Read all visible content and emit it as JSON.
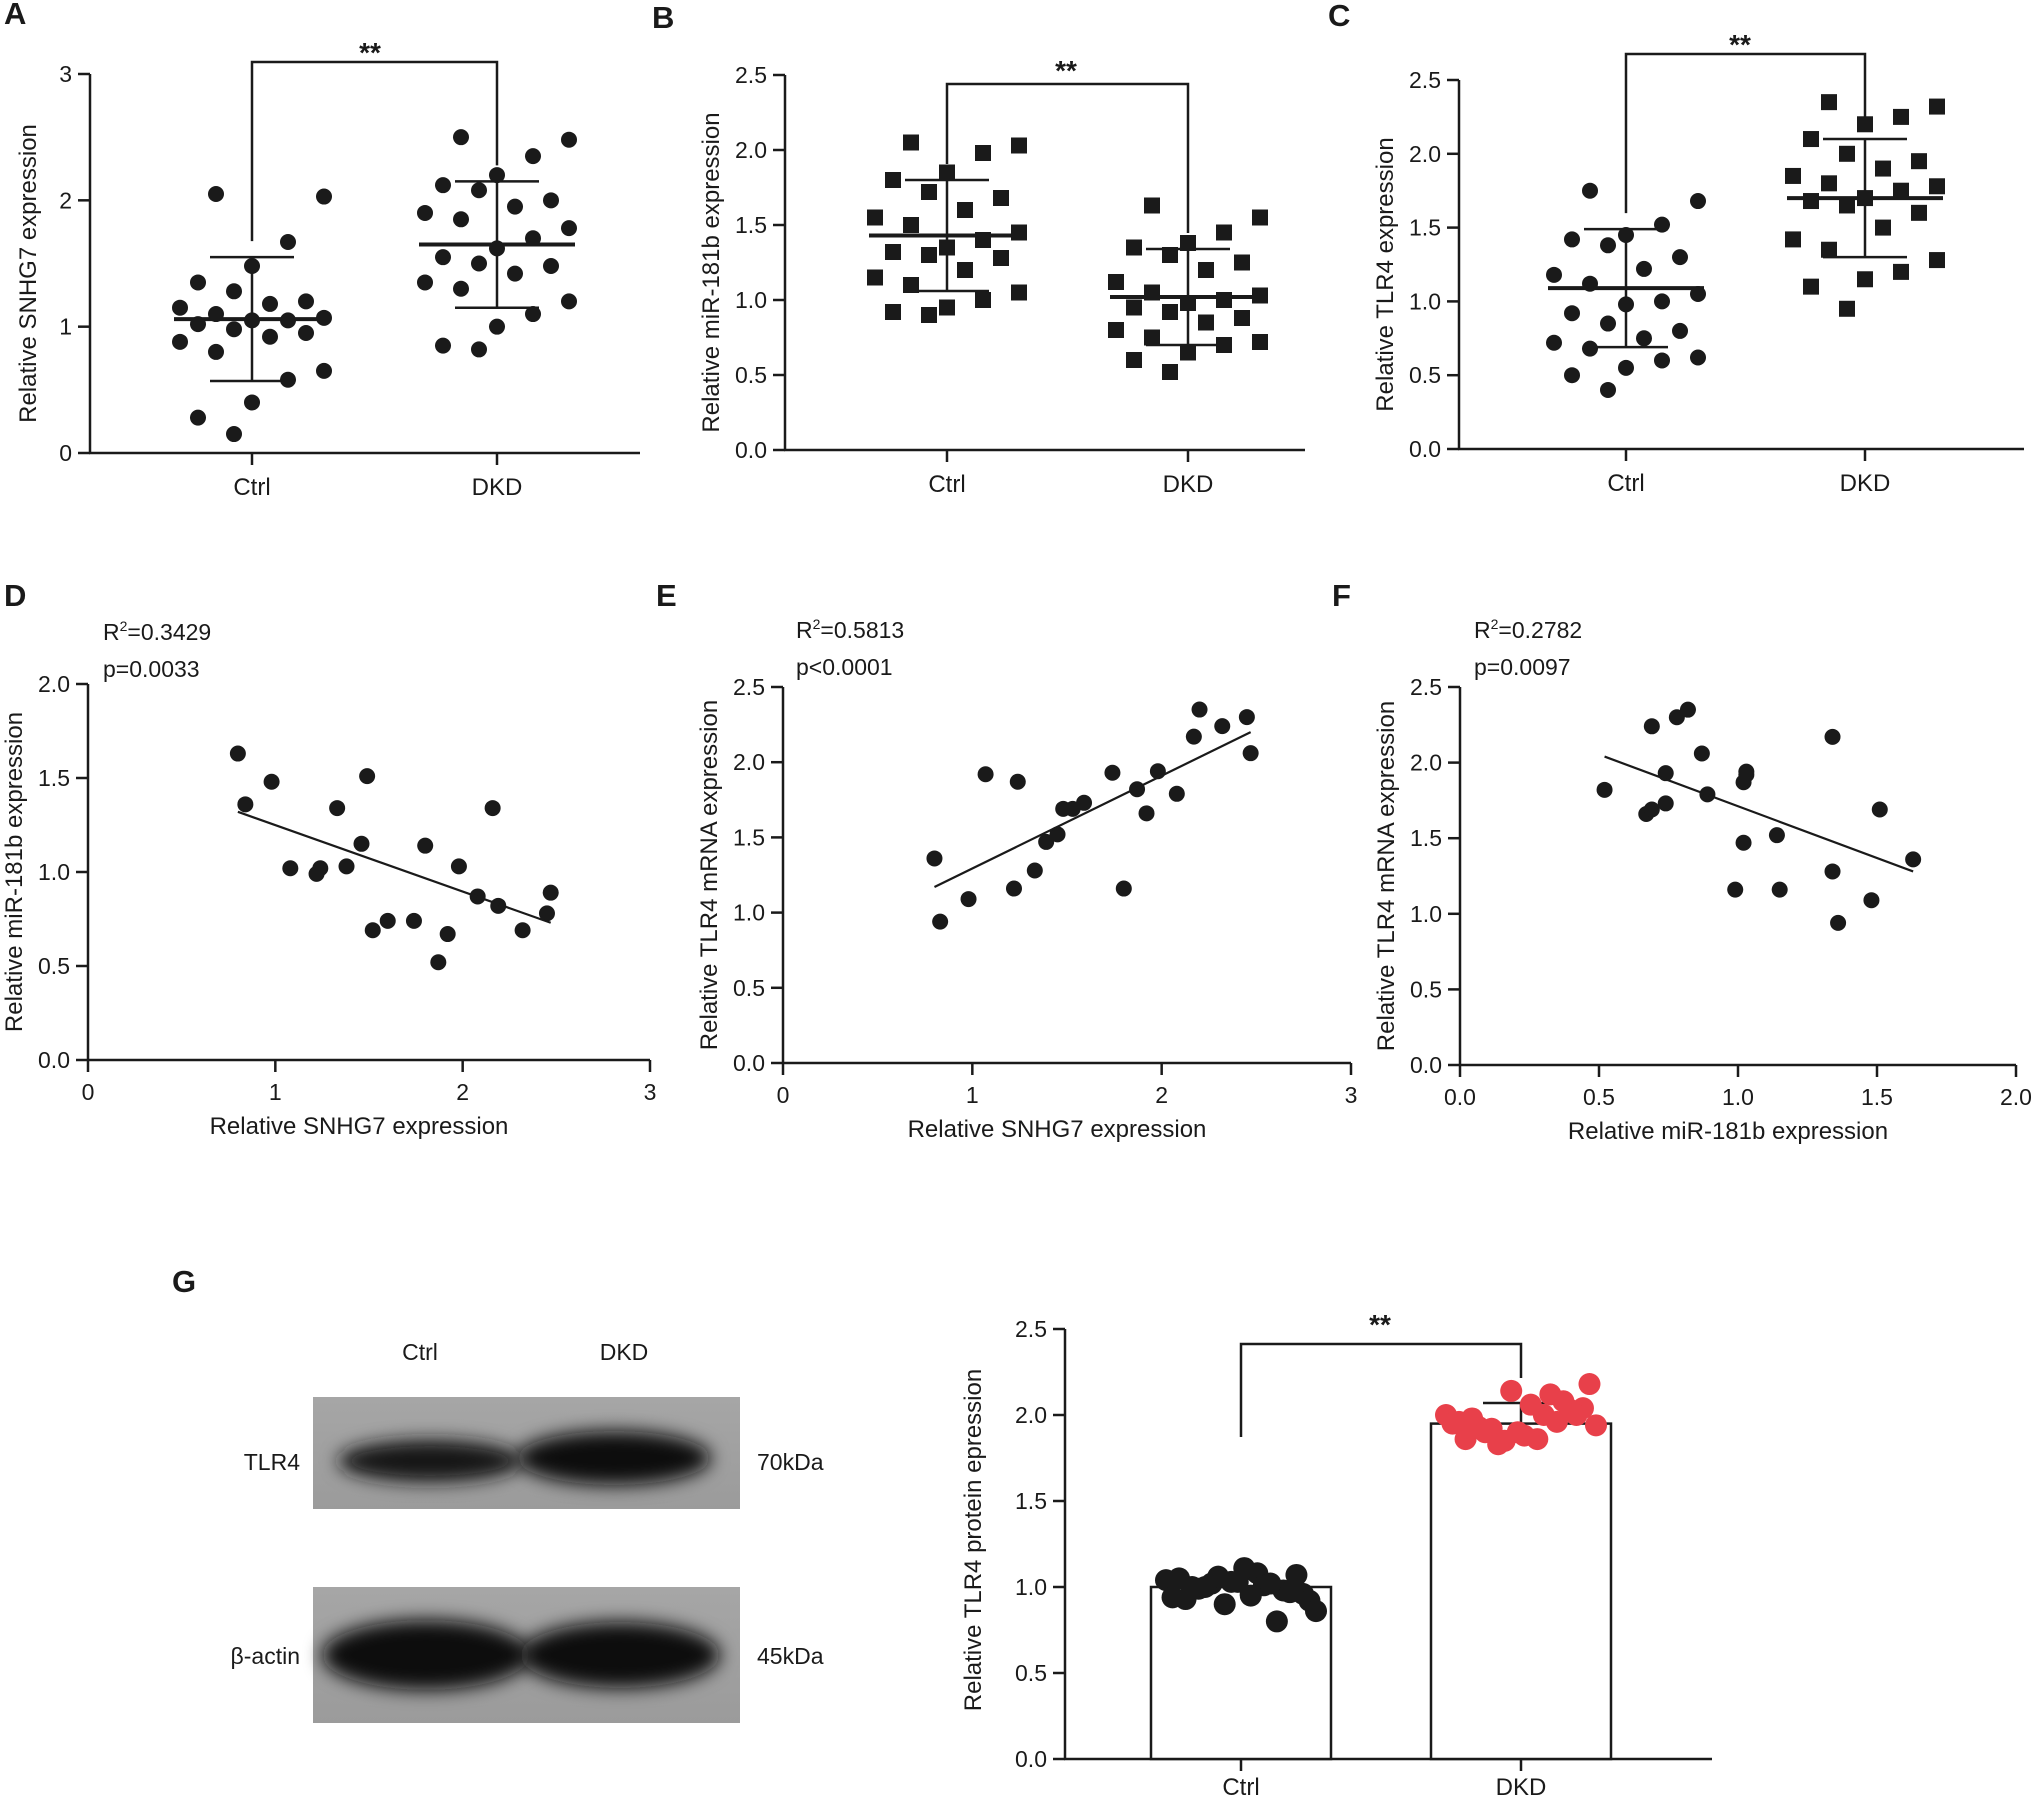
{
  "panels": {
    "A": {
      "letter": "A",
      "significance": "**"
    },
    "B": {
      "letter": "B",
      "significance": "**"
    },
    "C": {
      "letter": "C",
      "significance": "**"
    },
    "D": {
      "letter": "D",
      "r2_prefix": "R",
      "r2_value": "=0.3429",
      "p_text": "p=0.0033"
    },
    "E": {
      "letter": "E",
      "r2_prefix": "R",
      "r2_value": "=0.5813",
      "p_text": "p<0.0001"
    },
    "F": {
      "letter": "F",
      "r2_prefix": "R",
      "r2_value": "=0.2782",
      "p_text": "p=0.0097"
    },
    "G": {
      "letter": "G",
      "significance": "**"
    }
  },
  "blot": {
    "lanes": [
      "Ctrl",
      "DKD"
    ],
    "rows": [
      {
        "label": "TLR4",
        "size": "70kDa"
      },
      {
        "label": "β-actin",
        "size": "45kDa"
      }
    ]
  },
  "chart_data": [
    {
      "id": "A",
      "type": "scatter",
      "ylabel": "Relative SNHG7 expression",
      "xlabel": "",
      "categories": [
        "Ctrl",
        "DKD"
      ],
      "ylim": [
        0,
        3
      ],
      "yticks": [
        "0",
        "1",
        "2",
        "3"
      ],
      "yticks_values": [
        0,
        1,
        2,
        3
      ],
      "marker": "circle",
      "series": [
        {
          "values": [
            2.05,
            2.03,
            1.67,
            1.48,
            1.35,
            1.28,
            1.2,
            1.18,
            1.15,
            1.1,
            1.07,
            1.05,
            1.05,
            1.02,
            0.98,
            0.95,
            0.92,
            0.88,
            0.8,
            0.65,
            0.58,
            0.4,
            0.28,
            0.15
          ],
          "mean": 1.06,
          "sd": 0.49
        },
        {
          "values": [
            2.5,
            2.48,
            2.35,
            2.2,
            2.12,
            2.08,
            2.0,
            1.95,
            1.9,
            1.85,
            1.78,
            1.7,
            1.62,
            1.55,
            1.5,
            1.48,
            1.42,
            1.35,
            1.3,
            1.2,
            1.1,
            1.0,
            0.85,
            0.82
          ],
          "mean": 1.65,
          "sd": 0.5
        }
      ]
    },
    {
      "id": "B",
      "type": "scatter",
      "ylabel": "Relative miR-181b expression",
      "xlabel": "",
      "categories": [
        "Ctrl",
        "DKD"
      ],
      "ylim": [
        0,
        2.5
      ],
      "yticks": [
        "0.0",
        "0.5",
        "1.0",
        "1.5",
        "2.0",
        "2.5"
      ],
      "yticks_values": [
        0,
        0.5,
        1,
        1.5,
        2,
        2.5
      ],
      "marker": "square",
      "series": [
        {
          "values": [
            2.05,
            2.03,
            1.98,
            1.85,
            1.8,
            1.72,
            1.68,
            1.6,
            1.55,
            1.5,
            1.45,
            1.4,
            1.35,
            1.32,
            1.3,
            1.28,
            1.2,
            1.15,
            1.1,
            1.05,
            1.0,
            0.95,
            0.92,
            0.9
          ],
          "mean": 1.43,
          "sd": 0.37
        },
        {
          "values": [
            1.63,
            1.55,
            1.45,
            1.38,
            1.35,
            1.3,
            1.25,
            1.2,
            1.12,
            1.05,
            1.03,
            1.0,
            0.98,
            0.95,
            0.92,
            0.88,
            0.85,
            0.8,
            0.75,
            0.72,
            0.7,
            0.65,
            0.6,
            0.52
          ],
          "mean": 1.02,
          "sd": 0.32
        }
      ]
    },
    {
      "id": "C",
      "type": "scatter",
      "ylabel": "Relative TLR4 expression",
      "xlabel": "",
      "categories": [
        "Ctrl",
        "DKD"
      ],
      "ylim": [
        0,
        2.5
      ],
      "yticks": [
        "0.0",
        "0.5",
        "1.0",
        "1.5",
        "2.0",
        "2.5"
      ],
      "yticks_values": [
        0,
        0.5,
        1,
        1.5,
        2,
        2.5
      ],
      "marker_by_series": [
        "circle",
        "square"
      ],
      "series": [
        {
          "values": [
            1.75,
            1.68,
            1.52,
            1.45,
            1.42,
            1.38,
            1.3,
            1.22,
            1.18,
            1.12,
            1.05,
            1.0,
            0.98,
            0.92,
            0.85,
            0.8,
            0.75,
            0.72,
            0.68,
            0.62,
            0.6,
            0.55,
            0.5,
            0.4
          ],
          "mean": 1.09,
          "sd": 0.4
        },
        {
          "values": [
            2.35,
            2.32,
            2.25,
            2.2,
            2.1,
            2.0,
            1.95,
            1.9,
            1.85,
            1.8,
            1.78,
            1.75,
            1.7,
            1.68,
            1.65,
            1.6,
            1.5,
            1.42,
            1.35,
            1.28,
            1.2,
            1.15,
            1.1,
            0.95
          ],
          "mean": 1.7,
          "sd": 0.4
        }
      ]
    },
    {
      "id": "D",
      "type": "scatter",
      "xlabel": "Relative SNHG7 expression",
      "ylabel": "Relative miR-181b expression",
      "xlim": [
        0,
        3
      ],
      "xticks": [
        "0",
        "1",
        "2",
        "3"
      ],
      "xticks_values": [
        0,
        1,
        2,
        3
      ],
      "ylim": [
        0,
        2.0
      ],
      "yticks": [
        "0.0",
        "0.5",
        "1.0",
        "1.5",
        "2.0"
      ],
      "yticks_values": [
        0,
        0.5,
        1,
        1.5,
        2
      ],
      "points": [
        [
          0.8,
          1.63
        ],
        [
          0.84,
          1.36
        ],
        [
          0.98,
          1.48
        ],
        [
          1.08,
          1.02
        ],
        [
          1.22,
          0.99
        ],
        [
          1.24,
          1.02
        ],
        [
          1.33,
          1.34
        ],
        [
          1.38,
          1.03
        ],
        [
          1.46,
          1.15
        ],
        [
          1.49,
          1.51
        ],
        [
          1.52,
          0.69
        ],
        [
          1.6,
          0.74
        ],
        [
          1.74,
          0.74
        ],
        [
          1.8,
          1.14
        ],
        [
          1.87,
          0.52
        ],
        [
          1.92,
          0.67
        ],
        [
          1.98,
          1.03
        ],
        [
          2.08,
          0.87
        ],
        [
          2.16,
          1.34
        ],
        [
          2.19,
          0.82
        ],
        [
          2.32,
          0.69
        ],
        [
          2.45,
          0.78
        ],
        [
          2.47,
          0.89
        ]
      ],
      "fit": [
        [
          0.8,
          1.32
        ],
        [
          2.47,
          0.73
        ]
      ]
    },
    {
      "id": "E",
      "type": "scatter",
      "xlabel": "Relative SNHG7 expression",
      "ylabel": "Relative TLR4 mRNA expression",
      "xlim": [
        0,
        3
      ],
      "xticks": [
        "0",
        "1",
        "2",
        "3"
      ],
      "xticks_values": [
        0,
        1,
        2,
        3
      ],
      "ylim": [
        0,
        2.5
      ],
      "yticks": [
        "0.0",
        "0.5",
        "1.0",
        "1.5",
        "2.0",
        "2.5"
      ],
      "yticks_values": [
        0,
        0.5,
        1,
        1.5,
        2,
        2.5
      ],
      "points": [
        [
          0.8,
          1.36
        ],
        [
          0.83,
          0.94
        ],
        [
          0.98,
          1.09
        ],
        [
          1.07,
          1.92
        ],
        [
          1.22,
          1.16
        ],
        [
          1.24,
          1.87
        ],
        [
          1.33,
          1.28
        ],
        [
          1.39,
          1.47
        ],
        [
          1.45,
          1.52
        ],
        [
          1.48,
          1.69
        ],
        [
          1.53,
          1.69
        ],
        [
          1.59,
          1.73
        ],
        [
          1.74,
          1.93
        ],
        [
          1.8,
          1.16
        ],
        [
          1.87,
          1.82
        ],
        [
          1.92,
          1.66
        ],
        [
          1.98,
          1.94
        ],
        [
          2.08,
          1.79
        ],
        [
          2.17,
          2.17
        ],
        [
          2.2,
          2.35
        ],
        [
          2.32,
          2.24
        ],
        [
          2.45,
          2.3
        ],
        [
          2.47,
          2.06
        ]
      ],
      "fit": [
        [
          0.8,
          1.17
        ],
        [
          2.47,
          2.2
        ]
      ]
    },
    {
      "id": "F",
      "type": "scatter",
      "xlabel": "Relative miR-181b expression",
      "ylabel": "Relative TLR4 mRNA expression",
      "xlim": [
        0,
        2.0
      ],
      "xticks": [
        "0.0",
        "0.5",
        "1.0",
        "1.5",
        "2.0"
      ],
      "xticks_values": [
        0,
        0.5,
        1,
        1.5,
        2
      ],
      "ylim": [
        0,
        2.5
      ],
      "yticks": [
        "0.0",
        "0.5",
        "1.0",
        "1.5",
        "2.0",
        "2.5"
      ],
      "yticks_values": [
        0,
        0.5,
        1,
        1.5,
        2,
        2.5
      ],
      "points": [
        [
          0.52,
          1.82
        ],
        [
          0.67,
          1.66
        ],
        [
          0.69,
          1.69
        ],
        [
          0.69,
          2.24
        ],
        [
          0.74,
          1.73
        ],
        [
          0.74,
          1.93
        ],
        [
          0.78,
          2.3
        ],
        [
          0.82,
          2.35
        ],
        [
          0.87,
          2.06
        ],
        [
          0.89,
          1.79
        ],
        [
          0.99,
          1.16
        ],
        [
          1.02,
          1.47
        ],
        [
          1.02,
          1.87
        ],
        [
          1.03,
          1.94
        ],
        [
          1.03,
          1.92
        ],
        [
          1.14,
          1.52
        ],
        [
          1.15,
          1.16
        ],
        [
          1.34,
          1.28
        ],
        [
          1.34,
          2.17
        ],
        [
          1.36,
          0.94
        ],
        [
          1.48,
          1.09
        ],
        [
          1.51,
          1.69
        ],
        [
          1.63,
          1.36
        ]
      ],
      "fit": [
        [
          0.52,
          2.04
        ],
        [
          1.63,
          1.28
        ]
      ]
    },
    {
      "id": "G",
      "type": "bar",
      "ylabel": "Relative TLR4 protein epression",
      "xlabel": "",
      "categories": [
        "Ctrl",
        "DKD"
      ],
      "ylim": [
        0,
        2.5
      ],
      "yticks": [
        "0.0",
        "0.5",
        "1.0",
        "1.5",
        "2.0",
        "2.5"
      ],
      "yticks_values": [
        0,
        0.5,
        1,
        1.5,
        2,
        2.5
      ],
      "series": [
        {
          "value": 1.0,
          "sd": 0.05,
          "color": "#1a1a1a",
          "points": [
            1.04,
            1.02,
            1.08,
            0.96,
            1.0,
            1.03,
            0.98,
            0.94,
            1.06,
            1.01,
            0.92,
            0.99,
            1.11,
            0.97,
            1.05,
            0.9,
            1.02,
            0.86,
            1.0,
            0.95,
            1.07,
            0.93,
            1.03,
            0.8
          ]
        },
        {
          "value": 1.95,
          "sd": 0.12,
          "color": "#e8404a",
          "points": [
            2.0,
            1.92,
            1.86,
            2.04,
            1.98,
            1.9,
            2.08,
            1.95,
            1.83,
            2.0,
            2.18,
            1.93,
            1.88,
            2.03,
            1.96,
            1.85,
            2.12,
            1.94,
            1.9,
            2.06,
            2.0,
            1.86,
            2.14,
            1.96
          ]
        }
      ]
    }
  ]
}
